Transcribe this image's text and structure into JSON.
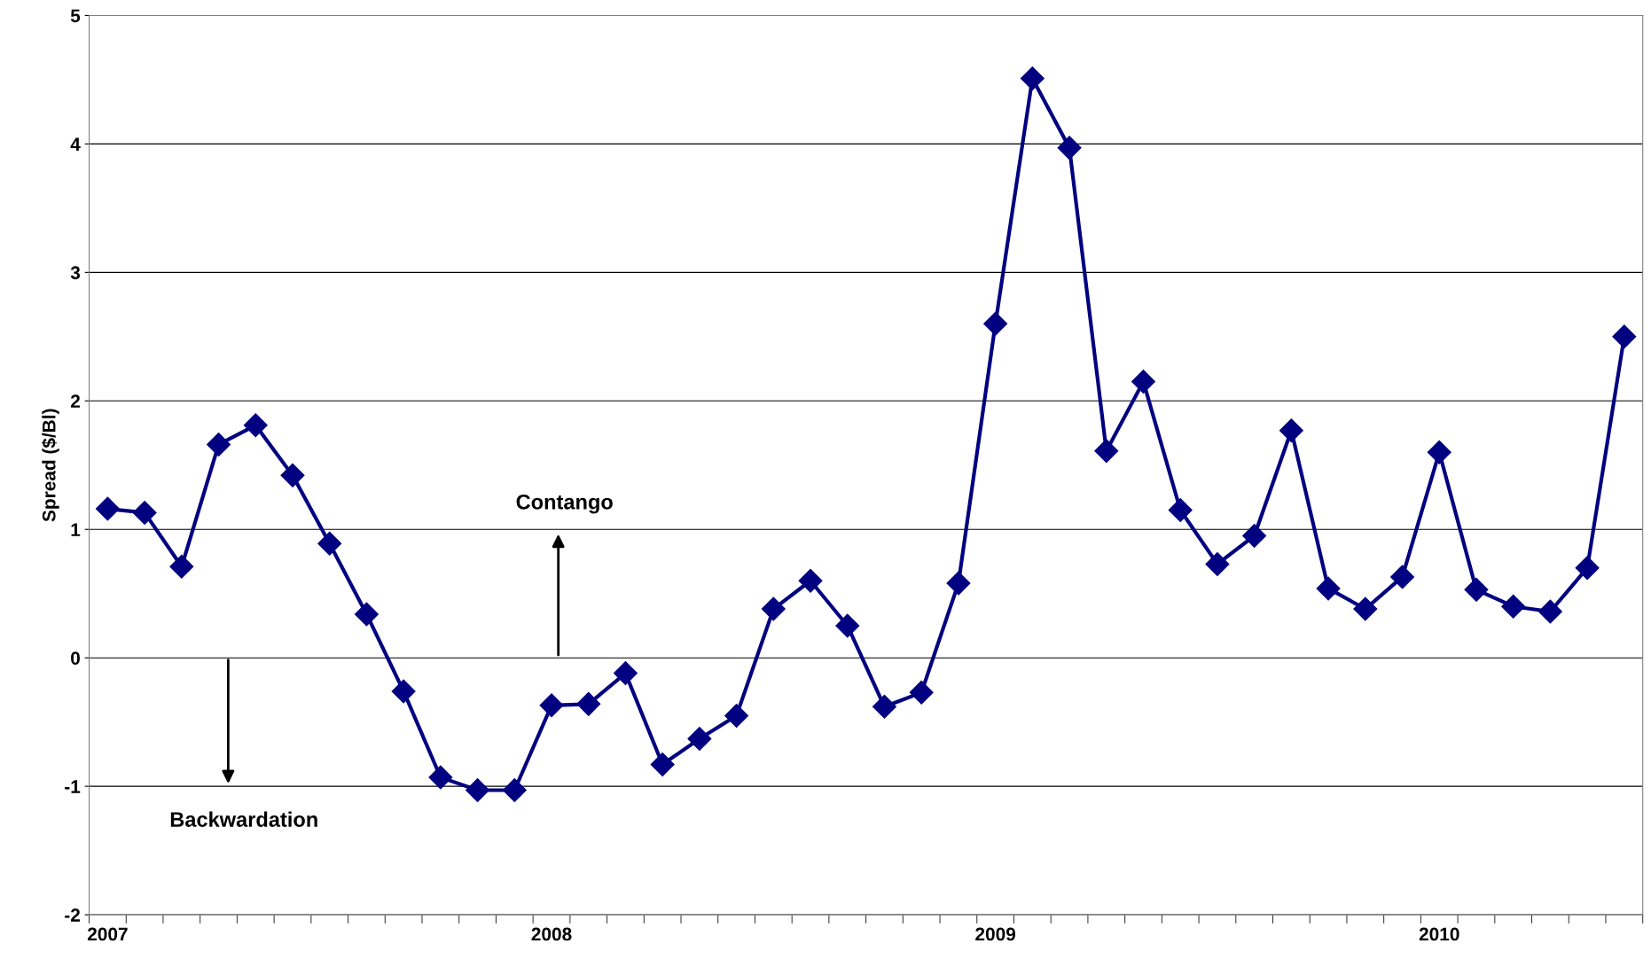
{
  "chart_data": {
    "type": "line",
    "ylabel": "Spread ($/Bl)",
    "categories": [
      "2007",
      null,
      null,
      null,
      null,
      null,
      null,
      null,
      null,
      null,
      null,
      null,
      "2008",
      null,
      null,
      null,
      null,
      null,
      null,
      null,
      null,
      null,
      null,
      null,
      "2009",
      null,
      null,
      null,
      null,
      null,
      null,
      null,
      null,
      null,
      null,
      null,
      "2010",
      null,
      null,
      null,
      null,
      null
    ],
    "series": [
      {
        "color": "#000080",
        "values": [
          1.16,
          1.13,
          0.71,
          1.66,
          1.81,
          1.42,
          0.89,
          0.34,
          -0.26,
          -0.93,
          -1.03,
          -1.03,
          -0.37,
          -0.36,
          -0.12,
          -0.83,
          -0.63,
          -0.45,
          0.38,
          0.6,
          0.25,
          -0.38,
          -0.27,
          0.58,
          2.6,
          4.51,
          3.97,
          1.61,
          2.15,
          1.15,
          0.73,
          0.95,
          1.77,
          0.54,
          0.38,
          0.63,
          1.6,
          0.53,
          0.4,
          0.36,
          0.7,
          2.5
        ]
      }
    ],
    "ylim": [
      -2,
      5
    ],
    "yticks": [
      -2,
      -1,
      0,
      1,
      2,
      3,
      4,
      5
    ],
    "grid": "y",
    "marker": "diamond",
    "line_style": "solid",
    "legend": false,
    "annotations": [
      "Contango",
      "Backwardation"
    ]
  }
}
